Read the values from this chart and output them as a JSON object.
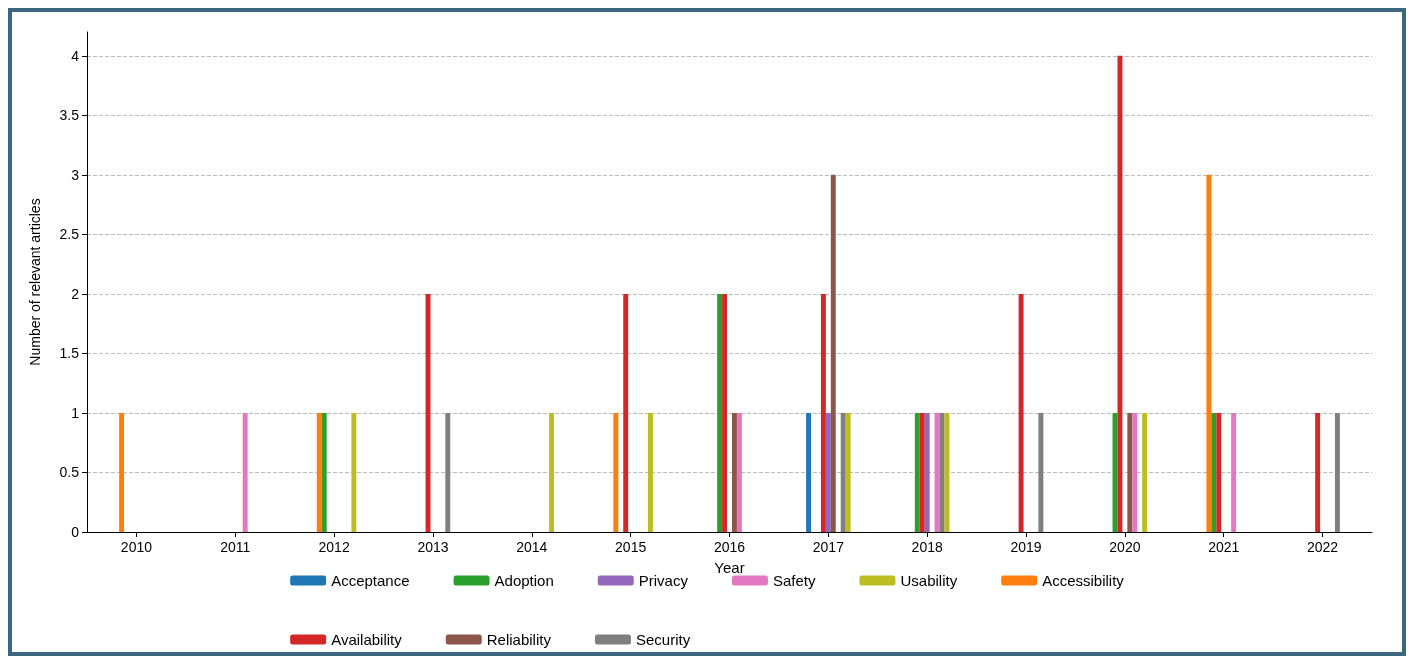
{
  "chart_data": {
    "type": "bar",
    "xlabel": "Year",
    "ylabel": "Number of relevant articles",
    "categories": [
      "2010",
      "2011",
      "2012",
      "2013",
      "2014",
      "2015",
      "2016",
      "2017",
      "2018",
      "2019",
      "2020",
      "2021",
      "2022"
    ],
    "series": [
      {
        "name": "Acceptance",
        "color": "#1f77b4",
        "values": [
          0,
          0,
          0,
          0,
          0,
          0,
          0,
          1,
          0,
          0,
          0,
          0,
          0
        ]
      },
      {
        "name": "Accessibility",
        "color": "#ff7f0e",
        "values": [
          1,
          0,
          1,
          0,
          0,
          1,
          0,
          0,
          0,
          0,
          0,
          3,
          0
        ]
      },
      {
        "name": "Adoption",
        "color": "#2ca02c",
        "values": [
          0,
          0,
          1,
          0,
          0,
          0,
          2,
          0,
          1,
          0,
          1,
          1,
          0
        ]
      },
      {
        "name": "Availability",
        "color": "#d62728",
        "values": [
          0,
          0,
          0,
          2,
          0,
          2,
          2,
          2,
          1,
          2,
          4,
          1,
          1
        ]
      },
      {
        "name": "Privacy",
        "color": "#9467bd",
        "values": [
          0,
          0,
          0,
          0,
          0,
          0,
          0,
          1,
          1,
          0,
          0,
          0,
          0
        ]
      },
      {
        "name": "Reliability",
        "color": "#8c564b",
        "values": [
          0,
          0,
          0,
          0,
          0,
          0,
          1,
          3,
          0,
          0,
          1,
          0,
          0
        ]
      },
      {
        "name": "Safety",
        "color": "#e377c2",
        "values": [
          0,
          1,
          0,
          0,
          0,
          0,
          1,
          0,
          1,
          0,
          1,
          1,
          0
        ]
      },
      {
        "name": "Security",
        "color": "#7f7f7f",
        "values": [
          0,
          0,
          0,
          1,
          0,
          0,
          0,
          1,
          1,
          1,
          0,
          0,
          1
        ]
      },
      {
        "name": "Usability",
        "color": "#bcbd22",
        "values": [
          0,
          0,
          1,
          0,
          1,
          1,
          0,
          1,
          1,
          0,
          1,
          0,
          0
        ]
      }
    ],
    "ylim": [
      0,
      4.2
    ],
    "yticks": [
      0,
      0.5,
      1,
      1.5,
      2,
      2.5,
      3,
      3.5,
      4
    ],
    "grid": "y",
    "legend": "bottom"
  }
}
